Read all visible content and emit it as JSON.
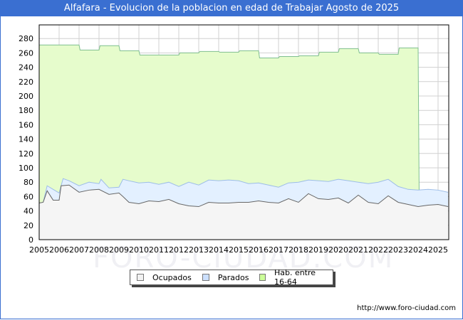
{
  "header": {
    "title": "Alfafara - Evolucion de la poblacion en edad de Trabajar Agosto de 2025"
  },
  "footer": {
    "url": "http://www.foro-ciudad.com"
  },
  "watermark": "FORO-CIUDAD.COM",
  "legend": [
    {
      "label": "Ocupados",
      "color": "#f2f2f2"
    },
    {
      "label": "Parados",
      "color": "#cce0ff"
    },
    {
      "label": "Hab. entre 16-64",
      "color": "#ccff99"
    }
  ],
  "colors": {
    "title_bg": "#3a6fd1",
    "hab_fill": "#e6fccc",
    "hab_line": "#7fbf8f",
    "parados_fill": "#e3f0ff",
    "parados_line": "#9dbde8",
    "ocupados_fill": "#f5f5f5",
    "ocupados_line": "#666666",
    "grid": "#d0d0d0"
  },
  "chart_data": {
    "type": "area",
    "title": "Alfafara - Evolucion de la poblacion en edad de Trabajar Agosto de 2025",
    "xlabel": "",
    "ylabel": "",
    "xlim": [
      2005,
      2025.6
    ],
    "ylim": [
      0,
      300
    ],
    "x_ticks": [
      "2005",
      "2006",
      "2007",
      "2008",
      "2009",
      "2010",
      "2011",
      "2012",
      "2013",
      "2014",
      "2015",
      "2016",
      "2017",
      "2018",
      "2019",
      "2020",
      "2021",
      "2022",
      "2023",
      "2024",
      "2025"
    ],
    "y_ticks": [
      0,
      20,
      40,
      60,
      80,
      100,
      120,
      140,
      160,
      180,
      200,
      220,
      240,
      260,
      280
    ],
    "grid": true,
    "legend_position": "bottom",
    "series": [
      {
        "name": "Hab. entre 16-64",
        "x": [
          2005,
          2007,
          2007.05,
          2008,
          2008.05,
          2009,
          2009.05,
          2010,
          2010.05,
          2012,
          2012.05,
          2013,
          2013.05,
          2014,
          2014.05,
          2015,
          2015.05,
          2016,
          2016.05,
          2017,
          2017.05,
          2018,
          2018.05,
          2019,
          2019.05,
          2020,
          2020.05,
          2021,
          2021.05,
          2022,
          2022.05,
          2023,
          2023.05,
          2024,
          2024.05
        ],
        "values": [
          271,
          271,
          264,
          264,
          270,
          270,
          263,
          263,
          257,
          257,
          260,
          260,
          262,
          262,
          261,
          261,
          263,
          263,
          253,
          253,
          255,
          255,
          256,
          256,
          261,
          261,
          266,
          266,
          260,
          260,
          258,
          258,
          267,
          267,
          69
        ]
      },
      {
        "name": "Parados",
        "note": "top of stacked area (Ocupados + Parados)",
        "x": [
          2005,
          2005.2,
          2005.4,
          2005.7,
          2006,
          2006.2,
          2006.5,
          2007,
          2007.5,
          2008,
          2008.1,
          2008.5,
          2009,
          2009.2,
          2009.5,
          2010,
          2010.5,
          2011,
          2011.5,
          2012,
          2012.5,
          2013,
          2013.5,
          2014,
          2014.5,
          2015,
          2015.5,
          2016,
          2016.5,
          2017,
          2017.5,
          2018,
          2018.5,
          2019,
          2019.5,
          2020,
          2020.5,
          2021,
          2021.5,
          2022,
          2022.5,
          2023,
          2023.5,
          2024,
          2024.5,
          2025,
          2025.5
        ],
        "values": [
          51,
          52,
          75,
          70,
          65,
          85,
          82,
          75,
          80,
          78,
          84,
          72,
          73,
          84,
          82,
          79,
          80,
          77,
          80,
          74,
          80,
          76,
          83,
          82,
          83,
          82,
          78,
          79,
          76,
          73,
          79,
          80,
          83,
          82,
          81,
          84,
          82,
          80,
          78,
          80,
          84,
          74,
          70,
          69,
          70,
          69,
          66
        ]
      },
      {
        "name": "Ocupados",
        "x": [
          2005,
          2005.2,
          2005.4,
          2005.7,
          2006,
          2006.1,
          2006.5,
          2007,
          2007.5,
          2008,
          2008.5,
          2009,
          2009.2,
          2009.5,
          2010,
          2010.5,
          2011,
          2011.5,
          2012,
          2012.5,
          2013,
          2013.5,
          2014,
          2014.5,
          2015,
          2015.5,
          2016,
          2016.5,
          2017,
          2017.5,
          2018,
          2018.5,
          2019,
          2019.5,
          2020,
          2020.5,
          2021,
          2021.5,
          2022,
          2022.5,
          2023,
          2023.5,
          2024,
          2024.5,
          2025,
          2025.5
        ],
        "values": [
          51,
          52,
          68,
          55,
          55,
          75,
          76,
          66,
          69,
          70,
          63,
          65,
          60,
          52,
          50,
          54,
          53,
          56,
          50,
          47,
          46,
          52,
          51,
          51,
          52,
          52,
          54,
          52,
          51,
          57,
          52,
          64,
          57,
          56,
          58,
          51,
          62,
          52,
          50,
          61,
          52,
          49,
          46,
          48,
          49,
          46
        ]
      }
    ]
  }
}
